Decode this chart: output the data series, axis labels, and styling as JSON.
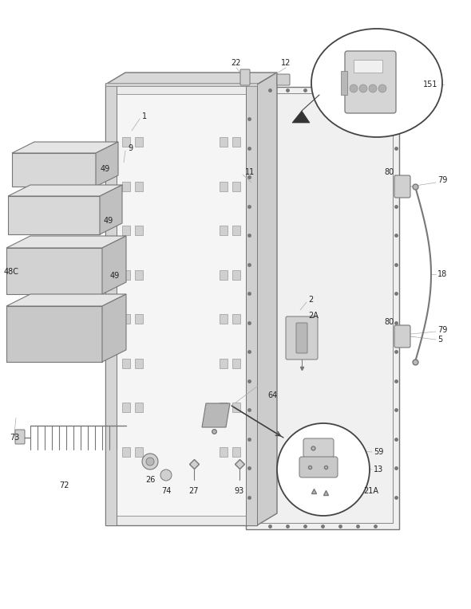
{
  "bg_color": "#ffffff",
  "line_color": "#777777",
  "dark_color": "#444444",
  "light_fill": "#e8e8e8",
  "mid_fill": "#d0d0d0",
  "dark_fill": "#b8b8b8",
  "label_color": "#222222",
  "label_fs": 7.0,
  "figsize": [
    5.9,
    7.64
  ],
  "dpi": 100,
  "xlim": [
    0,
    590
  ],
  "ylim": [
    0,
    764
  ]
}
